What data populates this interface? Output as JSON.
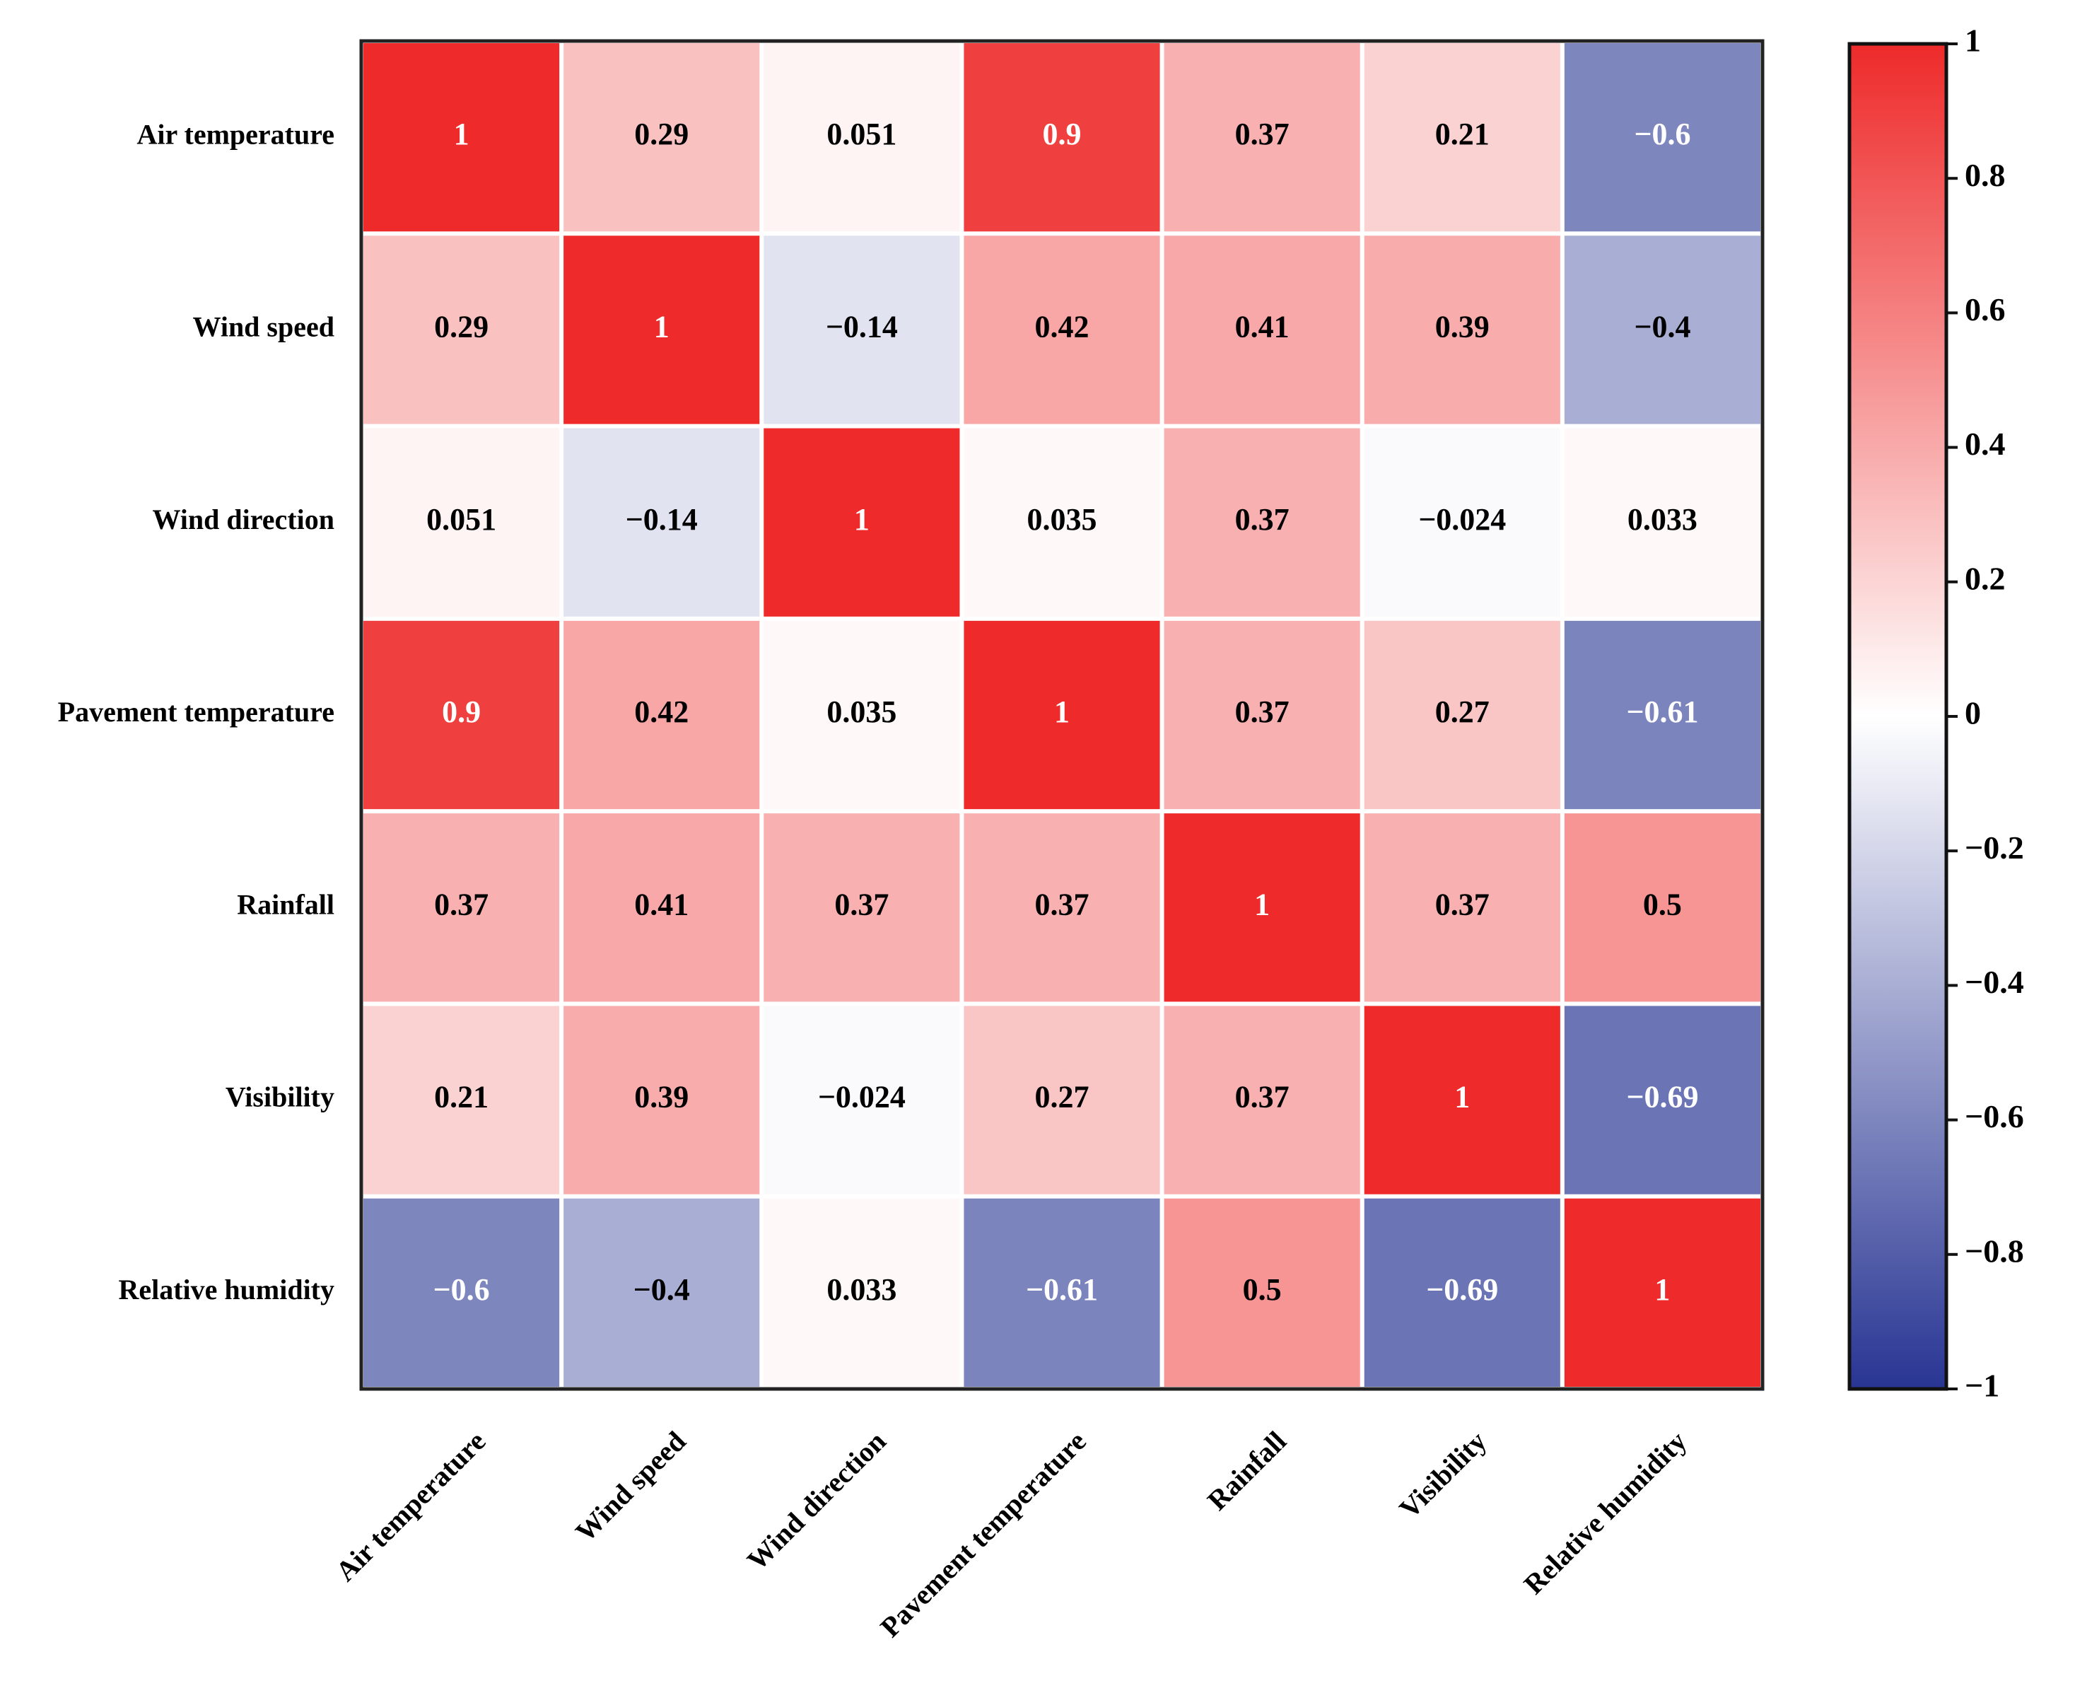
{
  "chart_data": {
    "type": "heatmap",
    "categories": [
      "Air temperature",
      "Wind speed",
      "Wind direction",
      "Pavement temperature",
      "Rainfall",
      "Visibility",
      "Relative humidity"
    ],
    "values": [
      [
        1,
        0.29,
        0.051,
        0.9,
        0.37,
        0.21,
        -0.6
      ],
      [
        0.29,
        1,
        -0.14,
        0.42,
        0.41,
        0.39,
        -0.4
      ],
      [
        0.051,
        -0.14,
        1,
        0.035,
        0.37,
        -0.024,
        0.033
      ],
      [
        0.9,
        0.42,
        0.035,
        1,
        0.37,
        0.27,
        -0.61
      ],
      [
        0.37,
        0.41,
        0.37,
        0.37,
        1,
        0.37,
        0.5
      ],
      [
        0.21,
        0.39,
        -0.024,
        0.27,
        0.37,
        1,
        -0.69
      ],
      [
        -0.6,
        -0.4,
        0.033,
        -0.61,
        0.5,
        -0.69,
        1
      ]
    ],
    "value_labels": [
      [
        "1",
        "0.29",
        "0.051",
        "0.9",
        "0.37",
        "0.21",
        "−0.6"
      ],
      [
        "0.29",
        "1",
        "−0.14",
        "0.42",
        "0.41",
        "0.39",
        "−0.4"
      ],
      [
        "0.051",
        "−0.14",
        "1",
        "0.035",
        "0.37",
        "−0.024",
        "0.033"
      ],
      [
        "0.9",
        "0.42",
        "0.035",
        "1",
        "0.37",
        "0.27",
        "−0.61"
      ],
      [
        "0.37",
        "0.41",
        "0.37",
        "0.37",
        "1",
        "0.37",
        "0.5"
      ],
      [
        "0.21",
        "0.39",
        "−0.024",
        "0.27",
        "0.37",
        "1",
        "−0.69"
      ],
      [
        "−0.6",
        "−0.4",
        "0.033",
        "−0.61",
        "0.5",
        "−0.69",
        "1"
      ]
    ],
    "colormap": [
      "#283593",
      "#ffffff",
      "#ee2a2a"
    ],
    "clim": [
      -1,
      1
    ],
    "cticks": [
      1,
      0.8,
      0.6,
      0.4,
      0.2,
      0,
      {
        "value": -0.2,
        "label": "−0.2"
      },
      {
        "value": -0.4,
        "label": "−0.4"
      },
      {
        "value": -0.6,
        "label": "−0.6"
      },
      {
        "value": -0.8,
        "label": "−0.8"
      },
      {
        "value": -1,
        "label": "−1"
      }
    ]
  }
}
